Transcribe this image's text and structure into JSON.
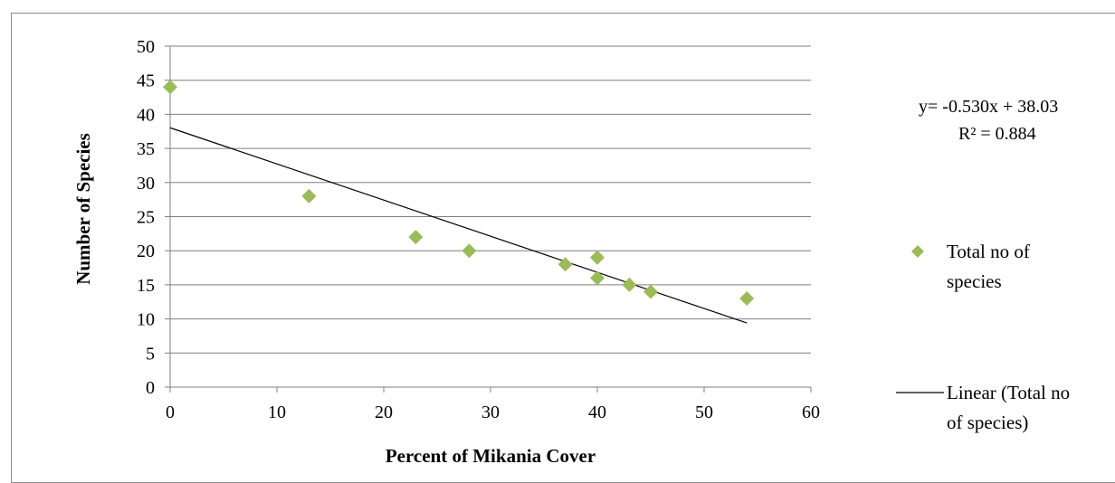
{
  "chart_data": {
    "type": "scatter",
    "title": "",
    "xlabel": "Percent of Mikania Cover",
    "ylabel": "Number of Species",
    "xlim": [
      0,
      60
    ],
    "ylim": [
      0,
      50
    ],
    "x_ticks": [
      "0",
      "10",
      "20",
      "30",
      "40",
      "50",
      "60"
    ],
    "y_ticks": [
      "0",
      "5",
      "10",
      "15",
      "20",
      "25",
      "30",
      "35",
      "40",
      "45",
      "50"
    ],
    "grid": "horizontal",
    "legend_position": "right",
    "series": [
      {
        "name": "Total no of species",
        "marker": "diamond",
        "color": "#9bbb59",
        "x": [
          0,
          13,
          23,
          28,
          37,
          40,
          40,
          43,
          45,
          54
        ],
        "y": [
          44,
          28,
          22,
          20,
          18,
          19,
          16,
          15,
          14,
          13
        ]
      }
    ],
    "trendline": {
      "name": "Linear (Total no of species)",
      "slope": -0.53,
      "intercept": 38.03,
      "x_range": [
        0,
        54
      ],
      "color": "#000000",
      "equation": "y= -0.530x + 38.03",
      "r_squared": "R² = 0.884"
    },
    "legend": {
      "marker_label_line1": "Total no of",
      "marker_label_line2": "species",
      "line_label_line1": "Linear (Total no",
      "line_label_line2": "of species)"
    }
  }
}
